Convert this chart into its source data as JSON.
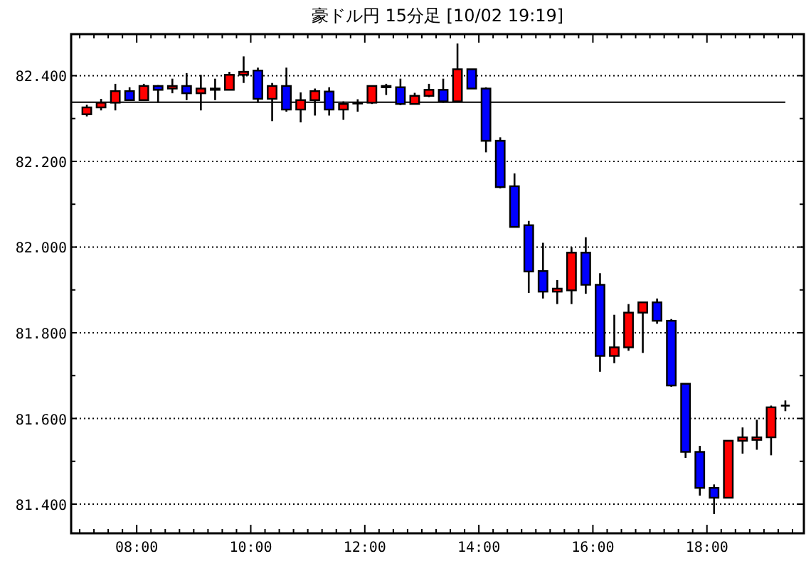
{
  "chart_data": {
    "type": "candlestick",
    "title": "豪ドル円 15分足 [10/02 19:19]",
    "x": [
      7.125,
      7.375,
      7.625,
      7.875,
      8.125,
      8.375,
      8.625,
      8.875,
      9.125,
      9.375,
      9.625,
      9.875,
      10.125,
      10.375,
      10.625,
      10.875,
      11.125,
      11.375,
      11.625,
      11.875,
      12.125,
      12.375,
      12.625,
      12.875,
      13.125,
      13.375,
      13.625,
      13.875,
      14.125,
      14.375,
      14.625,
      14.875,
      15.125,
      15.375,
      15.625,
      15.875,
      16.125,
      16.375,
      16.625,
      16.875,
      17.125,
      17.375,
      17.625,
      17.875,
      18.125,
      18.375,
      18.625,
      18.875,
      19.125,
      19.375
    ],
    "ohlc": [
      [
        82.31,
        82.332,
        82.305,
        82.326
      ],
      [
        82.326,
        82.346,
        82.319,
        82.337
      ],
      [
        82.337,
        82.381,
        82.319,
        82.364
      ],
      [
        82.364,
        82.373,
        82.343,
        82.343
      ],
      [
        82.343,
        82.381,
        82.343,
        82.376
      ],
      [
        82.376,
        82.378,
        82.337,
        82.367
      ],
      [
        82.37,
        82.393,
        82.359,
        82.376
      ],
      [
        82.376,
        82.406,
        82.343,
        82.359
      ],
      [
        82.359,
        82.402,
        82.319,
        82.37
      ],
      [
        82.367,
        82.393,
        82.343,
        82.37
      ],
      [
        82.367,
        82.409,
        82.367,
        82.402
      ],
      [
        82.402,
        82.445,
        82.383,
        82.409
      ],
      [
        82.412,
        82.419,
        82.337,
        82.346
      ],
      [
        82.346,
        82.383,
        82.294,
        82.376
      ],
      [
        82.376,
        82.419,
        82.316,
        82.321
      ],
      [
        82.321,
        82.361,
        82.291,
        82.343
      ],
      [
        82.343,
        82.37,
        82.307,
        82.364
      ],
      [
        82.363,
        82.373,
        82.307,
        82.321
      ],
      [
        82.321,
        82.34,
        82.297,
        82.334
      ],
      [
        82.337,
        82.345,
        82.316,
        82.335
      ],
      [
        82.337,
        82.376,
        82.334,
        82.376
      ],
      [
        82.373,
        82.381,
        82.355,
        82.376
      ],
      [
        82.373,
        82.393,
        82.331,
        82.334
      ],
      [
        82.334,
        82.36,
        82.334,
        82.353
      ],
      [
        82.353,
        82.381,
        82.35,
        82.367
      ],
      [
        82.367,
        82.393,
        82.337,
        82.34
      ],
      [
        82.34,
        82.475,
        82.34,
        82.415
      ],
      [
        82.415,
        82.415,
        82.37,
        82.37
      ],
      [
        82.37,
        82.373,
        82.221,
        82.248
      ],
      [
        82.248,
        82.256,
        82.137,
        82.14
      ],
      [
        82.142,
        82.172,
        82.047,
        82.047
      ],
      [
        82.051,
        82.061,
        81.893,
        81.943
      ],
      [
        81.944,
        82.01,
        81.88,
        81.896
      ],
      [
        81.896,
        81.923,
        81.867,
        81.903
      ],
      [
        81.899,
        82.0,
        81.867,
        81.987
      ],
      [
        81.987,
        82.023,
        81.891,
        81.912
      ],
      [
        81.912,
        81.939,
        81.709,
        81.746
      ],
      [
        81.746,
        81.842,
        81.729,
        81.766
      ],
      [
        81.766,
        81.867,
        81.758,
        81.847
      ],
      [
        81.847,
        81.871,
        81.753,
        81.871
      ],
      [
        81.871,
        81.88,
        81.821,
        81.828
      ],
      [
        81.828,
        81.832,
        81.674,
        81.677
      ],
      [
        81.681,
        81.681,
        81.508,
        81.522
      ],
      [
        81.522,
        81.536,
        81.42,
        81.438
      ],
      [
        81.438,
        81.446,
        81.377,
        81.415
      ],
      [
        81.415,
        81.548,
        81.415,
        81.548
      ],
      [
        81.548,
        81.579,
        81.518,
        81.556
      ],
      [
        81.55,
        81.597,
        81.527,
        81.556
      ],
      [
        81.556,
        81.63,
        81.514,
        81.626
      ],
      [
        81.63,
        81.642,
        81.617,
        81.63
      ]
    ],
    "colors": [
      "#ff0000",
      "#ff0000",
      "#ff0000",
      "#0000ff",
      "#ff0000",
      "#0000ff",
      "#ff0000",
      "#0000ff",
      "#ff0000",
      "#ff0000",
      "#ff0000",
      "#ff0000",
      "#0000ff",
      "#ff0000",
      "#0000ff",
      "#ff0000",
      "#ff0000",
      "#0000ff",
      "#ff0000",
      "#0000ff",
      "#ff0000",
      "#ff0000",
      "#0000ff",
      "#ff0000",
      "#ff0000",
      "#0000ff",
      "#ff0000",
      "#0000ff",
      "#0000ff",
      "#0000ff",
      "#0000ff",
      "#0000ff",
      "#0000ff",
      "#ff0000",
      "#ff0000",
      "#0000ff",
      "#0000ff",
      "#ff0000",
      "#ff0000",
      "#ff0000",
      "#0000ff",
      "#0000ff",
      "#0000ff",
      "#0000ff",
      "#0000ff",
      "#ff0000",
      "#ff0000",
      "#ff0000",
      "#ff0000",
      "#000000"
    ],
    "xlim": [
      6.85,
      19.7
    ],
    "xticks": [
      {
        "value": 7,
        "label": null
      },
      {
        "value": 7.25,
        "label": null
      },
      {
        "value": 7.5,
        "label": null
      },
      {
        "value": 7.75,
        "label": null
      },
      {
        "value": 8,
        "label": "08:00"
      },
      {
        "value": 8.25,
        "label": null
      },
      {
        "value": 8.5,
        "label": null
      },
      {
        "value": 8.75,
        "label": null
      },
      {
        "value": 9,
        "label": null
      },
      {
        "value": 9.25,
        "label": null
      },
      {
        "value": 9.5,
        "label": null
      },
      {
        "value": 9.75,
        "label": null
      },
      {
        "value": 10,
        "label": "10:00"
      },
      {
        "value": 10.25,
        "label": null
      },
      {
        "value": 10.5,
        "label": null
      },
      {
        "value": 10.75,
        "label": null
      },
      {
        "value": 11,
        "label": null
      },
      {
        "value": 11.25,
        "label": null
      },
      {
        "value": 11.5,
        "label": null
      },
      {
        "value": 11.75,
        "label": null
      },
      {
        "value": 12,
        "label": "12:00"
      },
      {
        "value": 12.25,
        "label": null
      },
      {
        "value": 12.5,
        "label": null
      },
      {
        "value": 12.75,
        "label": null
      },
      {
        "value": 13,
        "label": null
      },
      {
        "value": 13.25,
        "label": null
      },
      {
        "value": 13.5,
        "label": null
      },
      {
        "value": 13.75,
        "label": null
      },
      {
        "value": 14,
        "label": "14:00"
      },
      {
        "value": 14.25,
        "label": null
      },
      {
        "value": 14.5,
        "label": null
      },
      {
        "value": 14.75,
        "label": null
      },
      {
        "value": 15,
        "label": null
      },
      {
        "value": 15.25,
        "label": null
      },
      {
        "value": 15.5,
        "label": null
      },
      {
        "value": 15.75,
        "label": null
      },
      {
        "value": 16,
        "label": "16:00"
      },
      {
        "value": 16.25,
        "label": null
      },
      {
        "value": 16.5,
        "label": null
      },
      {
        "value": 16.75,
        "label": null
      },
      {
        "value": 17,
        "label": null
      },
      {
        "value": 17.25,
        "label": null
      },
      {
        "value": 17.5,
        "label": null
      },
      {
        "value": 17.75,
        "label": null
      },
      {
        "value": 18,
        "label": "18:00"
      },
      {
        "value": 18.25,
        "label": null
      },
      {
        "value": 18.5,
        "label": null
      },
      {
        "value": 18.75,
        "label": null
      },
      {
        "value": 19,
        "label": null
      },
      {
        "value": 19.25,
        "label": null
      },
      {
        "value": 19.5,
        "label": null
      }
    ],
    "ylim": [
      81.332,
      82.497
    ],
    "yticks": [
      {
        "value": 81.4,
        "label": "81.400"
      },
      {
        "value": 81.5,
        "label": null
      },
      {
        "value": 81.6,
        "label": "81.600"
      },
      {
        "value": 81.7,
        "label": null
      },
      {
        "value": 81.8,
        "label": "81.800"
      },
      {
        "value": 81.9,
        "label": null
      },
      {
        "value": 82.0,
        "label": "82.000"
      },
      {
        "value": 82.1,
        "label": null
      },
      {
        "value": 82.2,
        "label": "82.200"
      },
      {
        "value": 82.3,
        "label": null
      },
      {
        "value": 82.4,
        "label": "82.400"
      }
    ],
    "grid": "y",
    "ref_lines": [
      {
        "axis": "y",
        "value": 82.338,
        "color": "#000000",
        "line_style": "solid"
      }
    ]
  }
}
